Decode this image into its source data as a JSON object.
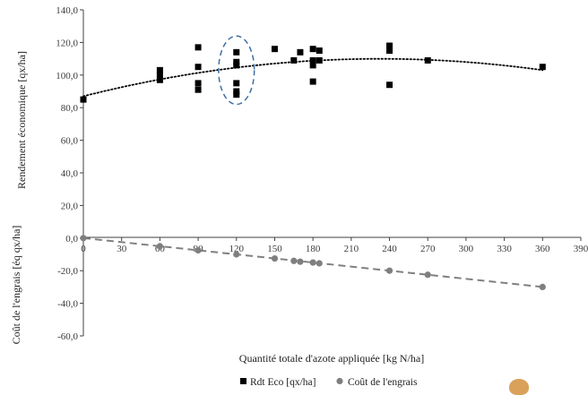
{
  "chart_data": {
    "type": "scatter",
    "title": "",
    "xlabel": "Quantité totale d'azote appliquée [kg N/ha]",
    "ylabel_top": "Rendement économique [qx/ha]",
    "ylabel_bottom": "Coût de l'engrais [éq qx/ha]",
    "xlim": [
      0,
      390
    ],
    "x_ticks": [
      "0",
      "30",
      "60",
      "90",
      "120",
      "150",
      "180",
      "210",
      "240",
      "270",
      "300",
      "330",
      "360",
      "390"
    ],
    "ylim": [
      -60,
      140
    ],
    "y_ticks": [
      "140,0",
      "120,0",
      "100,0",
      "80,0",
      "60,0",
      "40,0",
      "20,0",
      "0,0",
      "-20,0",
      "-40,0",
      "-60,0"
    ],
    "grid": false,
    "legend_position": "bottom",
    "series": [
      {
        "name": "Rdt Eco [qx/ha]",
        "marker": "square",
        "color": "#000000",
        "points": [
          [
            0,
            85
          ],
          [
            60,
            103
          ],
          [
            60,
            100
          ],
          [
            60,
            97
          ],
          [
            90,
            117
          ],
          [
            90,
            105
          ],
          [
            90,
            95
          ],
          [
            90,
            91
          ],
          [
            120,
            114
          ],
          [
            120,
            108
          ],
          [
            120,
            106
          ],
          [
            120,
            95
          ],
          [
            120,
            90
          ],
          [
            120,
            88
          ],
          [
            150,
            116
          ],
          [
            165,
            109
          ],
          [
            170,
            114
          ],
          [
            180,
            116
          ],
          [
            180,
            109
          ],
          [
            180,
            106
          ],
          [
            180,
            96
          ],
          [
            185,
            115
          ],
          [
            185,
            109
          ],
          [
            240,
            118
          ],
          [
            240,
            115
          ],
          [
            240,
            94
          ],
          [
            270,
            109
          ],
          [
            360,
            105
          ]
        ]
      },
      {
        "name": "Coût de l'engrais",
        "marker": "circle",
        "color": "#7f7f7f",
        "points": [
          [
            0,
            0
          ],
          [
            60,
            -5
          ],
          [
            90,
            -7.5
          ],
          [
            120,
            -10
          ],
          [
            150,
            -12.5
          ],
          [
            165,
            -14
          ],
          [
            170,
            -14.5
          ],
          [
            180,
            -15
          ],
          [
            185,
            -15.5
          ],
          [
            240,
            -20
          ],
          [
            270,
            -22.5
          ],
          [
            360,
            -30
          ]
        ]
      }
    ],
    "trendlines": [
      {
        "series": "Rdt Eco [qx/ha]",
        "type": "polynomial",
        "style": "dotted",
        "color": "#000000",
        "a": -0.000425,
        "b": 0.1975,
        "c": 87
      },
      {
        "series": "Coût de l'engrais",
        "type": "linear",
        "style": "dashed",
        "color": "#808080",
        "slope": -0.0833,
        "intercept": 0
      }
    ],
    "annotation": {
      "type": "ellipse",
      "style": "dashed",
      "color": "#3f6fa6",
      "cx": 120,
      "cy": 103,
      "rx": 14,
      "ry": 21
    }
  }
}
